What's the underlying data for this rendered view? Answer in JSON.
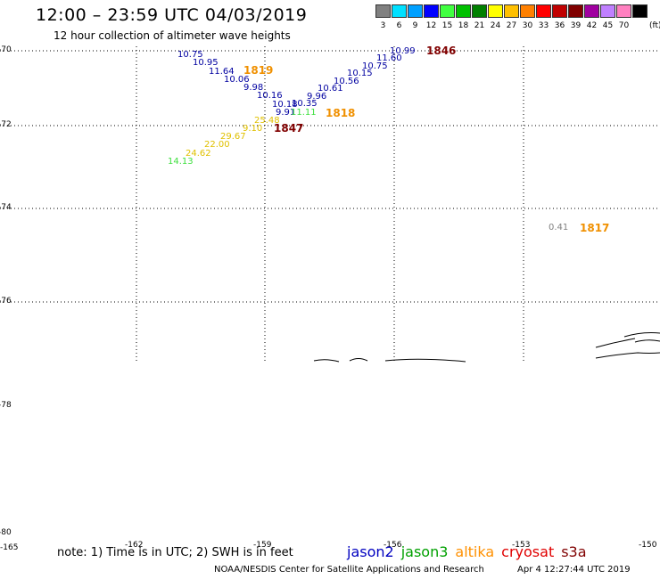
{
  "header": {
    "title": "12:00 – 23:59 UTC 04/03/2019",
    "subtitle": "12 hour collection of altimeter wave heights"
  },
  "scale": {
    "unit": "(ft)",
    "steps": [
      {
        "label": "3",
        "color": "#808080"
      },
      {
        "label": "6",
        "color": "#00e0ff"
      },
      {
        "label": "9",
        "color": "#00a0ff"
      },
      {
        "label": "12",
        "color": "#0000ff"
      },
      {
        "label": "15",
        "color": "#40ff40"
      },
      {
        "label": "18",
        "color": "#00c000"
      },
      {
        "label": "21",
        "color": "#008000"
      },
      {
        "label": "24",
        "color": "#ffff00"
      },
      {
        "label": "27",
        "color": "#ffc000"
      },
      {
        "label": "30",
        "color": "#ff8000"
      },
      {
        "label": "33",
        "color": "#ff0000"
      },
      {
        "label": "36",
        "color": "#c00000"
      },
      {
        "label": "39",
        "color": "#800000"
      },
      {
        "label": "42",
        "color": "#a000a0"
      },
      {
        "label": "45",
        "color": "#c080ff"
      },
      {
        "label": "70",
        "color": "#ff80c0"
      },
      {
        "label": "",
        "color": "#000000"
      }
    ]
  },
  "axes": {
    "lat_labels": [
      "-70",
      "-72",
      "-74",
      "-76",
      "-78",
      "-80"
    ],
    "lon_labels": [
      "-165",
      "-162",
      "-159",
      "-156",
      "-153",
      "-150"
    ]
  },
  "chart_data": {
    "type": "scatter",
    "title": "12:00 – 23:59 UTC 04/03/2019",
    "subtitle": "12 hour collection of altimeter wave heights",
    "xlabel": "",
    "ylabel": "",
    "unit": "ft",
    "series": [
      {
        "name": "jason2",
        "color": "#0000a0",
        "points": [
          {
            "text": "10.75"
          },
          {
            "text": "10.95"
          },
          {
            "text": "11.64"
          },
          {
            "text": "10.06"
          },
          {
            "text": "9.98"
          },
          {
            "text": "10.16"
          },
          {
            "text": "10.18"
          },
          {
            "text": "9.91"
          },
          {
            "text": "10.35"
          },
          {
            "text": "9.96"
          },
          {
            "text": "10.61"
          },
          {
            "text": "10.56"
          },
          {
            "text": "10.15"
          },
          {
            "text": "10.75"
          },
          {
            "text": "11.60"
          },
          {
            "text": "10.99"
          }
        ]
      },
      {
        "name": "jason3",
        "color": "#40e040",
        "points": [
          {
            "text": "14.13"
          },
          {
            "text": "11.11"
          }
        ]
      },
      {
        "name": "altika",
        "color": "#e0c000",
        "points": [
          {
            "text": "24.62"
          },
          {
            "text": "22.00"
          },
          {
            "text": "29.67"
          },
          {
            "text": "25.48"
          },
          {
            "text": "9.10"
          }
        ]
      },
      {
        "name": "cryosat",
        "color": "#808080",
        "points": [
          {
            "text": "0.41"
          }
        ]
      }
    ],
    "pass_labels": [
      {
        "text": "1819",
        "color": "#f09000"
      },
      {
        "text": "1846",
        "color": "#800000"
      },
      {
        "text": "1818",
        "color": "#f09000"
      },
      {
        "text": "1847",
        "color": "#800000"
      },
      {
        "text": "1817",
        "color": "#f09000"
      }
    ]
  },
  "footer": {
    "note": "note: 1) Time is in UTC; 2) SWH is in feet",
    "legend": [
      {
        "label": "jason2",
        "color": "#0000c0"
      },
      {
        "label": "jason3",
        "color": "#00a000"
      },
      {
        "label": "altika",
        "color": "#ff9000"
      },
      {
        "label": "cryosat",
        "color": "#e00000"
      },
      {
        "label": "s3a",
        "color": "#800000"
      }
    ],
    "credit": "NOAA/NESDIS Center for Satellite Applications and Research",
    "timestamp": "Apr  4 12:27:44 UTC 2019"
  }
}
